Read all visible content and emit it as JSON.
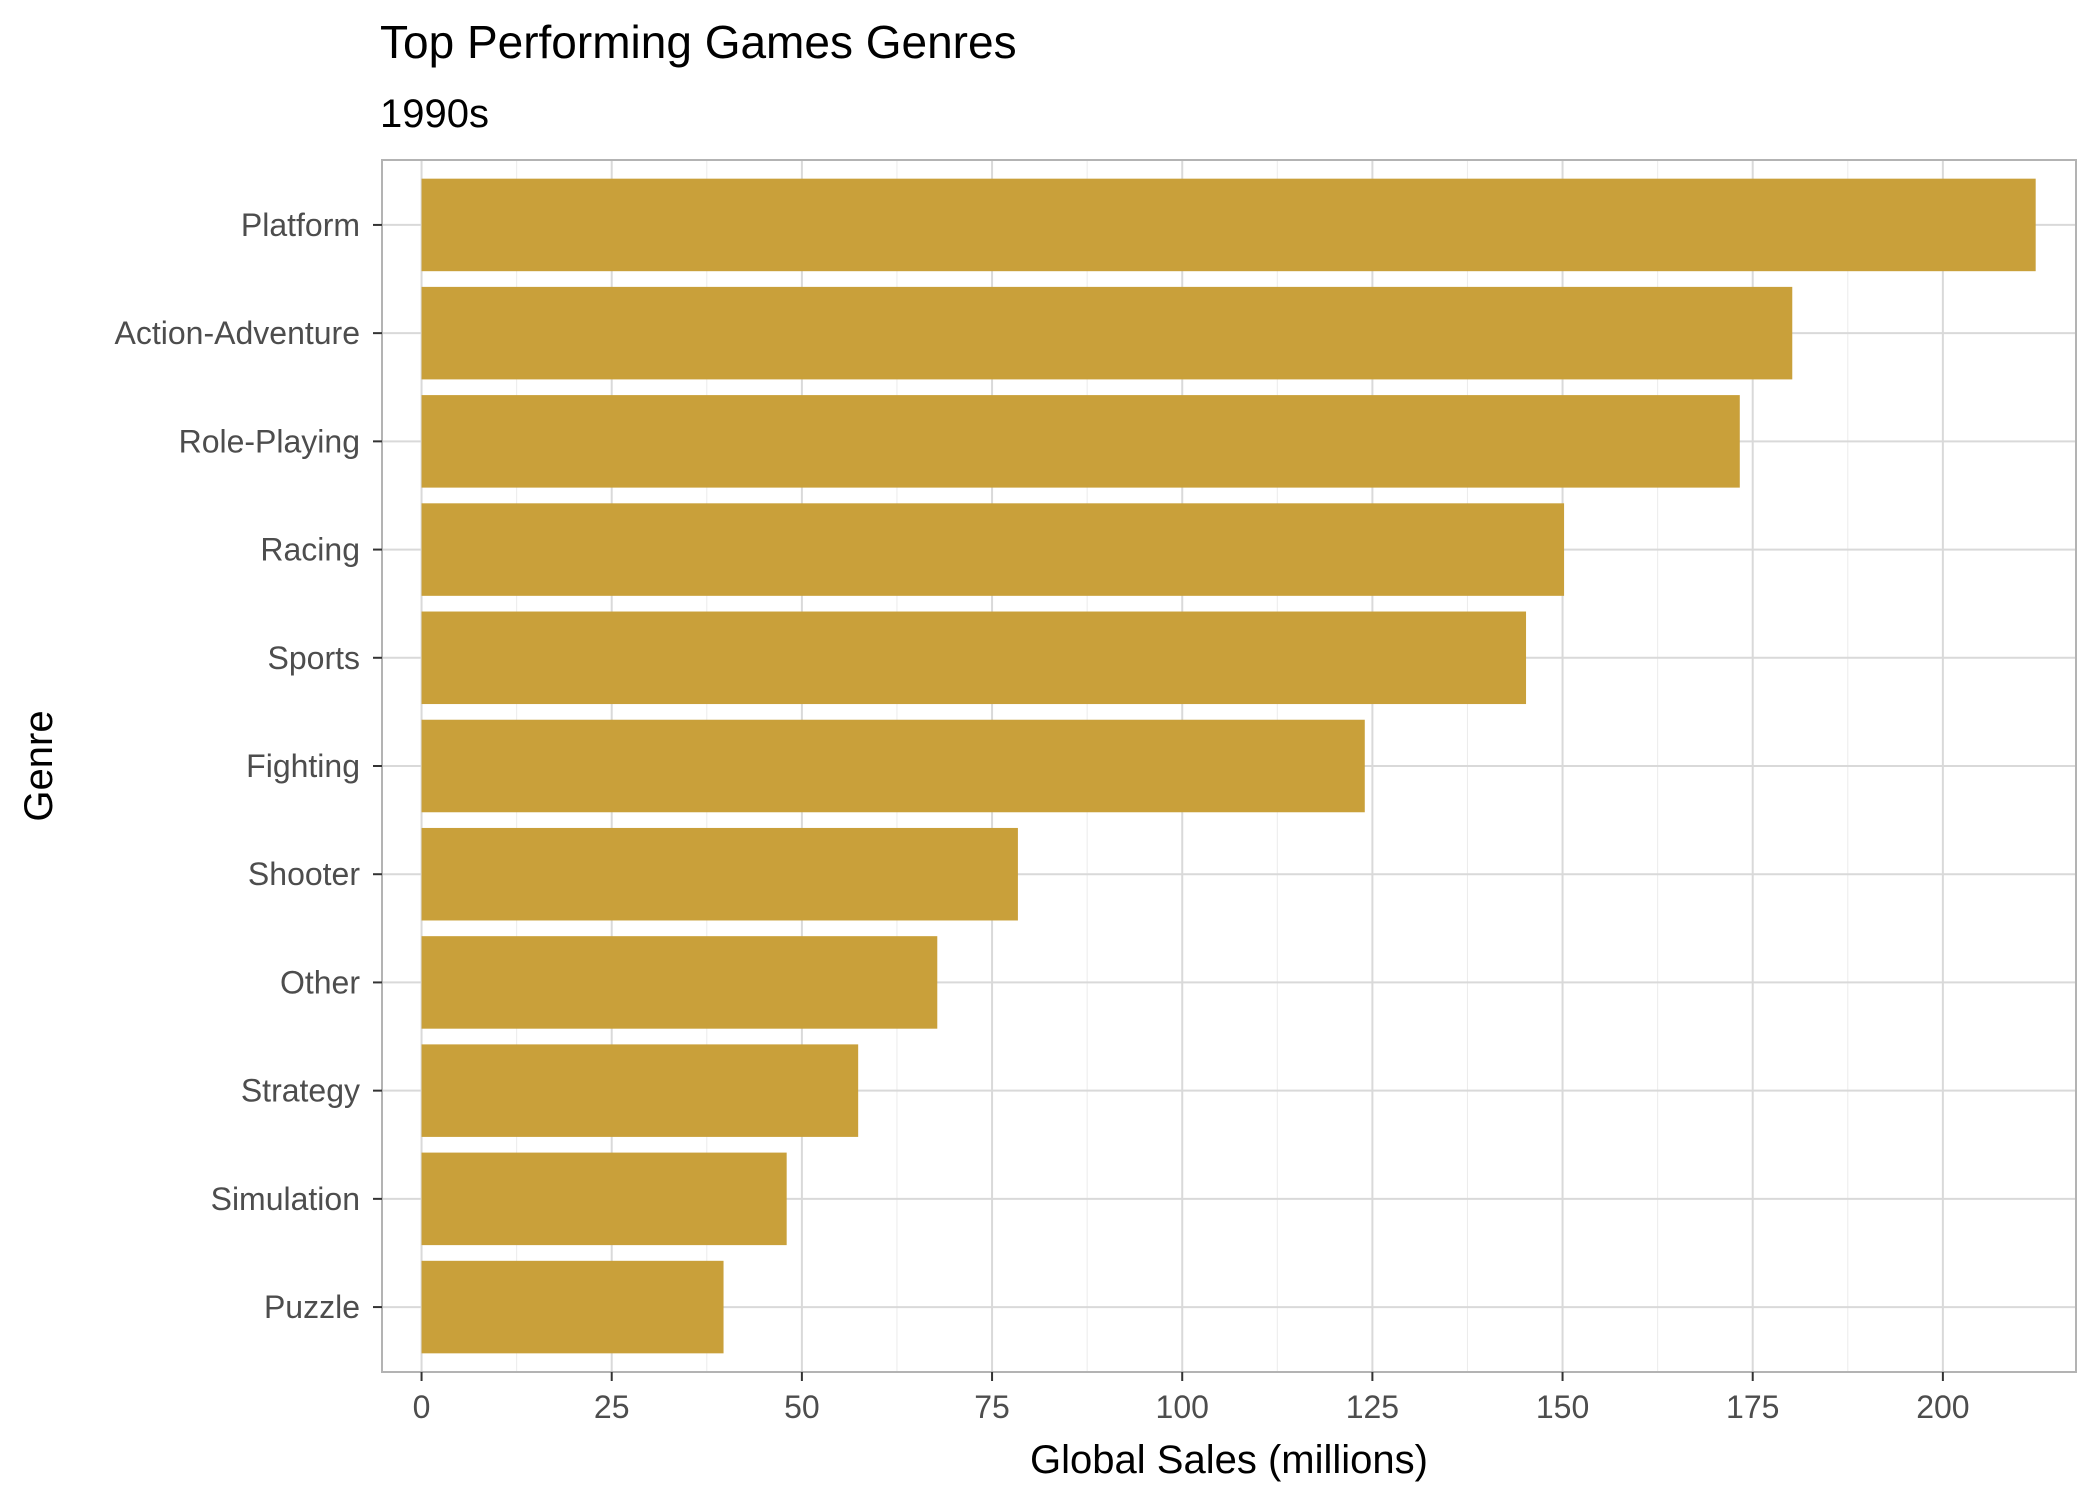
{
  "chart_data": {
    "type": "bar",
    "orientation": "horizontal",
    "title": "Top Performing Games Genres",
    "subtitle": "1990s",
    "xlabel": "Global Sales (millions)",
    "ylabel": "Genre",
    "categories": [
      "Platform",
      "Action-Adventure",
      "Role-Playing",
      "Racing",
      "Sports",
      "Fighting",
      "Shooter",
      "Other",
      "Strategy",
      "Simulation",
      "Puzzle"
    ],
    "values": [
      212.2,
      180.2,
      173.3,
      150.2,
      145.2,
      124.0,
      78.4,
      67.8,
      57.4,
      48.0,
      39.7
    ],
    "xlim": [
      -5.2,
      217.5
    ],
    "xticks": [
      0,
      25,
      50,
      75,
      100,
      125,
      150,
      175,
      200
    ],
    "grid": true,
    "legend": "none",
    "colors": {
      "bar": "#C9A03A",
      "grid_major": "#d9d9d9",
      "grid_minor": "#ebebeb",
      "panel_border": "#b3b3b3"
    }
  }
}
